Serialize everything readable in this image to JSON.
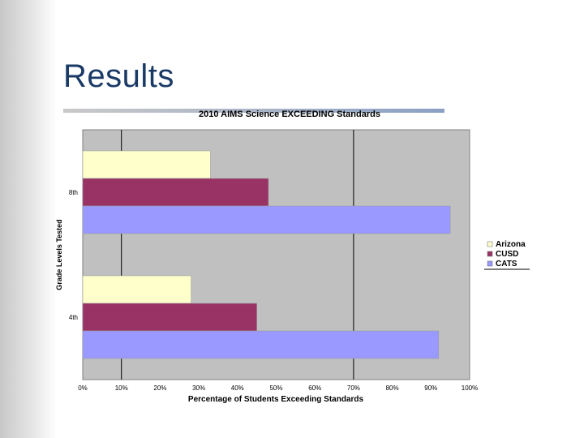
{
  "slide": {
    "title": "Results"
  },
  "chart_data": {
    "type": "bar",
    "orientation": "horizontal",
    "title": "2010 AIMS Science EXCEEDING Standards",
    "xlabel": "Percentage of Students Exceeding Standards",
    "ylabel": "Grade Levels Tested",
    "categories": [
      "8th",
      "4th"
    ],
    "x_ticks": [
      "0%",
      "10%",
      "20%",
      "30%",
      "40%",
      "50%",
      "60%",
      "70%",
      "80%",
      "90%",
      "100%"
    ],
    "xlim": [
      0,
      100
    ],
    "gridlines_at": [
      10,
      70
    ],
    "series": [
      {
        "name": "Arizona",
        "color": "#ffffcc",
        "values": [
          33,
          28
        ]
      },
      {
        "name": "CUSD",
        "color": "#993366",
        "values": [
          48,
          45
        ]
      },
      {
        "name": "CATS",
        "color": "#9999ff",
        "values": [
          95,
          92
        ]
      }
    ],
    "legend_position": "right",
    "plot_background": "#c0c0c0"
  }
}
